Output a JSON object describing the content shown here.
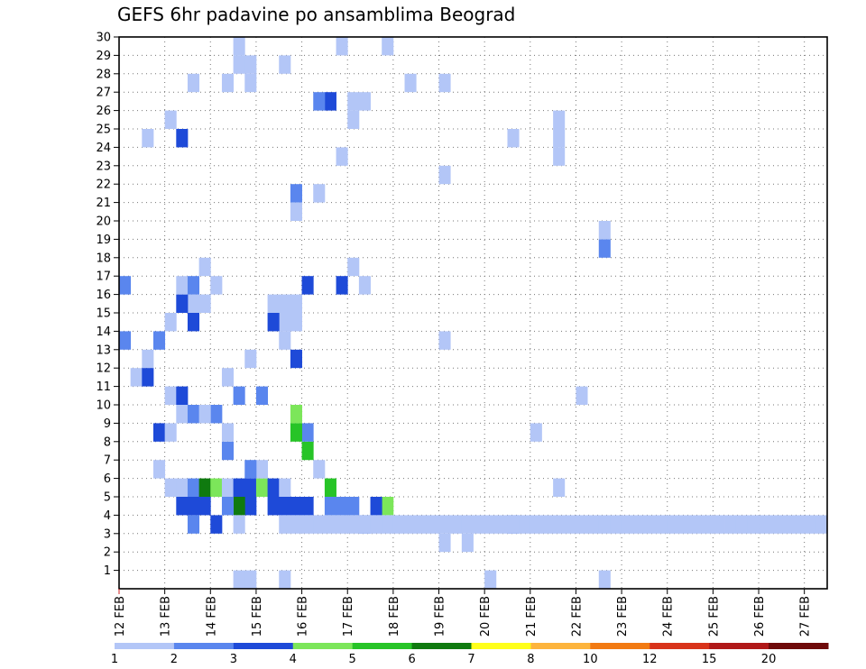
{
  "chart_data": {
    "type": "heatmap",
    "title": "GEFS 6hr padavine po ansamblima Beograd",
    "x_labels": [
      "12 FEB",
      "13 FEB",
      "14 FEB",
      "15 FEB",
      "16 FEB",
      "17 FEB",
      "18 FEB",
      "19 FEB",
      "20 FEB",
      "21 FEB",
      "22 FEB",
      "23 FEB",
      "24 FEB",
      "25 FEB",
      "26 FEB",
      "27 FEB"
    ],
    "y_labels": [
      "1",
      "2",
      "3",
      "4",
      "5",
      "6",
      "7",
      "8",
      "9",
      "10",
      "11",
      "12",
      "13",
      "14",
      "15",
      "16",
      "17",
      "18",
      "19",
      "20",
      "21",
      "22",
      "23",
      "24",
      "25",
      "26",
      "27",
      "28",
      "29",
      "30"
    ],
    "grid": true,
    "legend": {
      "position": "bottom",
      "labels": [
        "1",
        "2",
        "3",
        "4",
        "5",
        "6",
        "7",
        "8",
        "10",
        "12",
        "15",
        "20"
      ],
      "colors": [
        "#b3c6f7",
        "#5a86ee",
        "#1e4ad8",
        "#7ce65a",
        "#27c427",
        "#0f7a0f",
        "#ffff1a",
        "#fdb43c",
        "#f27a12",
        "#d8331a",
        "#b01818",
        "#6e0a0a"
      ]
    },
    "cells": [
      [
        15.5,
        1,
        1
      ],
      [
        19.5,
        0,
        1
      ],
      [
        20.0,
        0,
        1
      ],
      [
        22.5,
        0,
        1
      ],
      [
        20.0,
        1,
        1
      ],
      [
        22.5,
        1,
        1
      ],
      [
        19.0,
        3,
        1
      ],
      [
        19.5,
        3,
        1
      ],
      [
        20.5,
        4,
        2
      ],
      [
        21.5,
        6,
        1
      ],
      [
        21.0,
        9,
        1
      ],
      [
        22.0,
        11,
        1
      ],
      [
        19.0,
        14,
        1
      ],
      [
        22.5,
        19,
        2
      ],
      [
        22.5,
        20,
        1
      ],
      [
        19.0,
        23,
        1
      ],
      [
        21.5,
        24,
        1
      ],
      [
        20.5,
        25,
        1
      ],
      [
        21.5,
        25,
        1
      ],
      [
        21.5,
        26,
        1
      ],
      [
        19.0,
        28,
        1
      ],
      [
        17.75,
        5,
        4
      ],
      [
        17.5,
        5,
        3
      ],
      [
        17.25,
        4,
        2
      ],
      [
        16.5,
        6,
        5
      ],
      [
        16.25,
        7,
        1
      ],
      [
        16.0,
        8,
        5
      ],
      [
        16.0,
        9,
        2
      ],
      [
        15.75,
        9,
        5
      ],
      [
        15.75,
        10,
        4
      ],
      [
        16.75,
        5,
        2
      ],
      [
        16.5,
        5,
        2
      ],
      [
        17.0,
        5,
        2
      ],
      [
        16.0,
        5,
        3
      ],
      [
        15.75,
        5,
        3
      ],
      [
        15.5,
        5,
        3
      ],
      [
        15.25,
        5,
        3
      ],
      [
        14.75,
        5,
        3
      ],
      [
        14.5,
        5,
        6
      ],
      [
        14.25,
        5,
        2
      ],
      [
        14.5,
        6,
        1
      ],
      [
        14.75,
        6,
        3
      ],
      [
        15.0,
        6,
        4
      ],
      [
        15.25,
        6,
        3
      ],
      [
        15.5,
        6,
        1
      ],
      [
        15.0,
        7,
        1
      ],
      [
        14.75,
        7,
        2
      ],
      [
        14.25,
        8,
        2
      ],
      [
        14.25,
        9,
        1
      ],
      [
        14.0,
        10,
        2
      ],
      [
        14.5,
        11,
        2
      ],
      [
        15.0,
        11,
        2
      ],
      [
        14.25,
        12,
        1
      ],
      [
        14.75,
        13,
        1
      ],
      [
        15.75,
        13,
        3
      ],
      [
        15.5,
        14,
        1
      ],
      [
        15.75,
        15,
        1
      ],
      [
        15.5,
        15,
        1
      ],
      [
        15.25,
        15,
        3
      ],
      [
        15.5,
        16,
        1
      ],
      [
        15.75,
        16,
        1
      ],
      [
        15.25,
        16,
        1
      ],
      [
        16.0,
        17,
        3
      ],
      [
        17.25,
        17,
        1
      ],
      [
        16.75,
        17,
        3
      ],
      [
        17.0,
        18,
        1
      ],
      [
        15.75,
        22,
        2
      ],
      [
        15.75,
        21,
        1
      ],
      [
        16.25,
        22,
        1
      ],
      [
        16.75,
        24,
        1
      ],
      [
        17.0,
        26,
        1
      ],
      [
        16.5,
        27,
        3
      ],
      [
        16.25,
        27,
        2
      ],
      [
        17.0,
        27,
        1
      ],
      [
        17.25,
        27,
        1
      ],
      [
        14.25,
        28,
        1
      ],
      [
        14.75,
        28,
        1
      ],
      [
        14.5,
        29,
        1
      ],
      [
        14.75,
        29,
        1
      ],
      [
        15.5,
        29,
        1
      ],
      [
        18.25,
        28,
        1
      ],
      [
        16.75,
        30,
        1
      ],
      [
        14.5,
        30,
        1
      ],
      [
        17.75,
        30,
        1
      ],
      [
        16.25,
        31,
        3
      ],
      [
        16.0,
        31,
        1
      ],
      [
        17.5,
        31,
        1
      ],
      [
        17.25,
        31,
        1
      ],
      [
        15.0,
        31,
        1
      ],
      [
        15.25,
        31,
        1
      ],
      [
        11.5,
        5,
        4
      ],
      [
        11.75,
        5,
        3
      ],
      [
        11.0,
        28,
        6
      ],
      [
        10.5,
        17,
        4
      ],
      [
        11.0,
        17,
        1
      ],
      [
        11.5,
        17,
        2
      ],
      [
        12.0,
        17,
        2
      ],
      [
        12.5,
        25,
        1
      ],
      [
        13.25,
        25,
        3
      ],
      [
        13.0,
        26,
        1
      ],
      [
        13.5,
        28,
        1
      ],
      [
        13.5,
        16,
        1
      ],
      [
        13.0,
        15,
        1
      ],
      [
        13.5,
        15,
        3
      ],
      [
        13.25,
        16,
        3
      ],
      [
        13.75,
        16,
        1
      ],
      [
        13.25,
        17,
        1
      ],
      [
        13.5,
        17,
        2
      ],
      [
        14.0,
        17,
        1
      ],
      [
        13.75,
        18,
        1
      ],
      [
        12.75,
        9,
        3
      ],
      [
        13.0,
        11,
        1
      ],
      [
        13.25,
        11,
        3
      ],
      [
        12.75,
        7,
        1
      ],
      [
        13.0,
        9,
        1
      ],
      [
        13.25,
        10,
        1
      ],
      [
        13.5,
        10,
        2
      ],
      [
        13.75,
        10,
        1
      ],
      [
        12.5,
        13,
        1
      ],
      [
        12.0,
        14,
        2
      ],
      [
        12.25,
        12,
        1
      ],
      [
        12.5,
        12,
        3
      ],
      [
        12.75,
        14,
        2
      ],
      [
        13.25,
        5,
        3
      ],
      [
        13.5,
        5,
        3
      ],
      [
        13.0,
        6,
        1
      ],
      [
        13.25,
        6,
        1
      ],
      [
        13.5,
        6,
        2
      ],
      [
        13.75,
        6,
        6
      ],
      [
        14.0,
        6,
        4
      ],
      [
        14.25,
        6,
        1
      ],
      [
        14.5,
        6,
        3
      ],
      [
        13.5,
        0,
        1
      ],
      [
        14.75,
        1,
        1
      ],
      [
        14.5,
        1,
        1
      ],
      [
        14.75,
        0,
        1
      ],
      [
        13.75,
        5,
        3
      ],
      [
        13.5,
        4,
        2
      ],
      [
        14.0,
        4,
        3
      ],
      [
        14.5,
        4,
        1
      ],
      [
        9.0,
        6,
        1
      ],
      [
        9.5,
        6,
        1
      ],
      [
        9.25,
        5,
        1
      ],
      [
        8.75,
        11,
        1
      ],
      [
        9.0,
        12,
        1
      ],
      [
        9.25,
        13,
        1
      ],
      [
        9.5,
        13,
        1
      ],
      [
        9.75,
        14,
        1
      ],
      [
        9.0,
        15,
        1
      ],
      [
        9.25,
        16,
        1
      ],
      [
        9.5,
        17,
        1
      ],
      [
        9.75,
        18,
        1
      ],
      [
        10.0,
        19,
        1
      ],
      [
        10.25,
        20,
        1
      ],
      [
        10.5,
        21,
        1
      ],
      [
        10.75,
        22,
        1
      ],
      [
        8.5,
        4,
        1
      ],
      [
        8.75,
        4,
        1
      ],
      [
        9.0,
        4,
        1
      ],
      [
        9.25,
        4,
        1
      ],
      [
        15.5,
        4,
        1
      ],
      [
        15.75,
        4,
        1
      ],
      [
        16.0,
        4,
        1
      ],
      [
        16.25,
        4,
        1
      ],
      [
        16.5,
        4,
        1
      ],
      [
        16.75,
        4,
        1
      ],
      [
        17.0,
        4,
        1
      ],
      [
        17.25,
        4,
        1
      ],
      [
        17.5,
        4,
        1
      ],
      [
        17.75,
        4,
        1
      ],
      [
        18.0,
        4,
        1
      ],
      [
        18.25,
        4,
        1
      ],
      [
        18.5,
        4,
        1
      ],
      [
        18.75,
        4,
        1
      ],
      [
        19.0,
        4,
        1
      ],
      [
        19.25,
        4,
        1
      ],
      [
        19.5,
        4,
        1
      ],
      [
        19.75,
        4,
        1
      ],
      [
        20.0,
        4,
        1
      ],
      [
        20.25,
        4,
        1
      ],
      [
        20.5,
        4,
        1
      ],
      [
        20.75,
        4,
        1
      ],
      [
        21.0,
        4,
        1
      ],
      [
        21.25,
        4,
        1
      ],
      [
        21.5,
        4,
        1
      ],
      [
        21.75,
        4,
        1
      ],
      [
        22.0,
        4,
        1
      ],
      [
        22.25,
        4,
        1
      ],
      [
        22.5,
        4,
        1
      ],
      [
        22.75,
        4,
        1
      ],
      [
        23.0,
        4,
        1
      ],
      [
        23.25,
        4,
        1
      ],
      [
        23.5,
        4,
        1
      ],
      [
        23.75,
        4,
        1
      ],
      [
        24.0,
        4,
        1
      ],
      [
        24.25,
        4,
        1
      ],
      [
        24.5,
        4,
        1
      ],
      [
        24.75,
        4,
        1
      ],
      [
        25.0,
        4,
        1
      ],
      [
        25.25,
        4,
        1
      ],
      [
        25.5,
        4,
        1
      ],
      [
        25.75,
        4,
        1
      ],
      [
        26.0,
        4,
        1
      ],
      [
        26.25,
        4,
        1
      ],
      [
        26.5,
        4,
        1
      ],
      [
        26.75,
        4,
        1
      ],
      [
        27.0,
        4,
        1
      ],
      [
        27.25,
        4,
        1
      ],
      [
        27.5,
        4,
        1
      ],
      [
        27.75,
        4,
        1
      ]
    ]
  }
}
